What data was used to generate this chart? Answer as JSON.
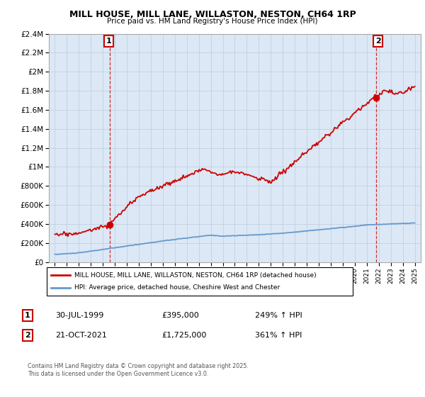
{
  "title": "MILL HOUSE, MILL LANE, WILLASTON, NESTON, CH64 1RP",
  "subtitle": "Price paid vs. HM Land Registry's House Price Index (HPI)",
  "legend_line1": "MILL HOUSE, MILL LANE, WILLASTON, NESTON, CH64 1RP (detached house)",
  "legend_line2": "HPI: Average price, detached house, Cheshire West and Chester",
  "point1_label": "1",
  "point1_date": "30-JUL-1999",
  "point1_price": "£395,000",
  "point1_hpi": "249% ↑ HPI",
  "point1_year": 1999.58,
  "point1_value": 395000,
  "point2_label": "2",
  "point2_date": "21-OCT-2021",
  "point2_price": "£1,725,000",
  "point2_hpi": "361% ↑ HPI",
  "point2_year": 2021.8,
  "point2_value": 1725000,
  "house_color": "#cc0000",
  "hpi_color": "#6699cc",
  "vline_color": "#cc0000",
  "grid_color": "#bbccdd",
  "bg_color": "#ffffff",
  "chart_bg": "#dce8f5",
  "ylim": [
    0,
    2400000
  ],
  "xlim": [
    1994.5,
    2025.5
  ],
  "yticks": [
    0,
    200000,
    400000,
    600000,
    800000,
    1000000,
    1200000,
    1400000,
    1600000,
    1800000,
    2000000,
    2200000,
    2400000
  ],
  "footnote": "Contains HM Land Registry data © Crown copyright and database right 2025.\nThis data is licensed under the Open Government Licence v3.0."
}
